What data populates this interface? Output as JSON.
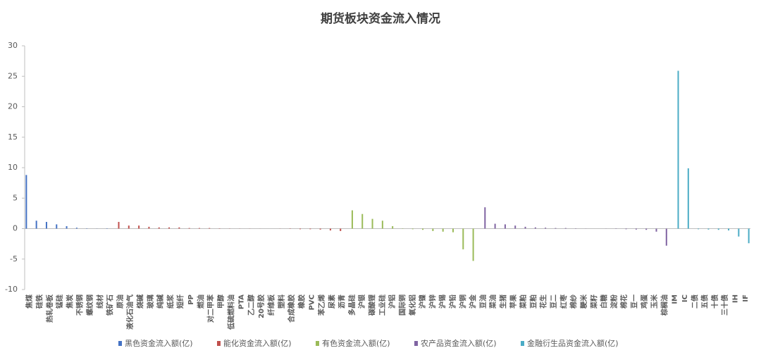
{
  "chart_data": {
    "type": "bar",
    "title": "期货板块资金流入情况",
    "categories": [
      "焦煤",
      "硅铁",
      "热轧卷板",
      "锰硅",
      "焦炭",
      "不锈钢",
      "螺纹钢",
      "线材",
      "铁矿石",
      "原油",
      "液化石油气",
      "烧碱",
      "玻璃",
      "纯碱",
      "纸浆",
      "短纤",
      "PP",
      "燃油",
      "对二甲苯",
      "甲醇",
      "低硫燃料油",
      "PTA",
      "乙二醇",
      "20号胶",
      "纤维板",
      "塑料",
      "合成橡胶",
      "橡胶",
      "PVC",
      "苯乙烯",
      "尿素",
      "沥青",
      "多晶硅",
      "沪银",
      "碳酸锂",
      "工业硅",
      "沪铝",
      "国际铜",
      "氧化铝",
      "沪镍",
      "沪锌",
      "沪锡",
      "沪铅",
      "沪铜",
      "沪金",
      "豆油",
      "菜油",
      "生猪",
      "苹果",
      "菜粕",
      "豆粕",
      "花生",
      "豆二",
      "红枣",
      "棉纱",
      "粳米",
      "菜籽",
      "白糖",
      "淀粉",
      "棉花",
      "豆一",
      "鸡蛋",
      "玉米",
      "棕榈油",
      "IM",
      "IC",
      "二债",
      "五债",
      "十债",
      "三十债",
      "IH",
      "IF"
    ],
    "series": [
      {
        "name": "黑色资金流入额(亿)",
        "color": "#4472c4",
        "values": [
          8.8,
          1.3,
          1.1,
          0.7,
          0.4,
          0.15,
          0.05,
          0.02,
          -0.05,
          null,
          null,
          null,
          null,
          null,
          null,
          null,
          null,
          null,
          null,
          null,
          null,
          null,
          null,
          null,
          null,
          null,
          null,
          null,
          null,
          null,
          null,
          null,
          null,
          null,
          null,
          null,
          null,
          null,
          null,
          null,
          null,
          null,
          null,
          null,
          null,
          null,
          null,
          null,
          null,
          null,
          null,
          null,
          null,
          null,
          null,
          null,
          null,
          null,
          null,
          null,
          null,
          null,
          null,
          null,
          null,
          null,
          null,
          null,
          null,
          null,
          null,
          null
        ]
      },
      {
        "name": "能化资金流入额(亿)",
        "color": "#c0504d",
        "values": [
          null,
          null,
          null,
          null,
          null,
          null,
          null,
          null,
          null,
          1.1,
          0.5,
          0.5,
          0.3,
          0.2,
          0.2,
          0.2,
          0.1,
          0.1,
          0.1,
          0.05,
          0.03,
          0.02,
          0.02,
          0.01,
          0,
          -0.02,
          -0.05,
          -0.1,
          -0.1,
          -0.15,
          -0.3,
          -0.4,
          null,
          null,
          null,
          null,
          null,
          null,
          null,
          null,
          null,
          null,
          null,
          null,
          null,
          null,
          null,
          null,
          null,
          null,
          null,
          null,
          null,
          null,
          null,
          null,
          null,
          null,
          null,
          null,
          null,
          null,
          null,
          null,
          null,
          null,
          null,
          null,
          null,
          null,
          null,
          null
        ]
      },
      {
        "name": "有色资金流入额(亿)",
        "color": "#9bbb59",
        "values": [
          null,
          null,
          null,
          null,
          null,
          null,
          null,
          null,
          null,
          null,
          null,
          null,
          null,
          null,
          null,
          null,
          null,
          null,
          null,
          null,
          null,
          null,
          null,
          null,
          null,
          null,
          null,
          null,
          null,
          null,
          null,
          null,
          3.0,
          2.4,
          1.6,
          1.3,
          0.4,
          0.05,
          -0.1,
          -0.2,
          -0.4,
          -0.5,
          -0.6,
          -3.4,
          -5.3,
          null,
          null,
          null,
          null,
          null,
          null,
          null,
          null,
          null,
          null,
          null,
          null,
          null,
          null,
          null,
          null,
          null,
          null,
          null,
          null,
          null,
          null,
          null,
          null,
          null,
          null,
          null
        ]
      },
      {
        "name": "农产品资金流入额(亿)",
        "color": "#8064a2",
        "values": [
          null,
          null,
          null,
          null,
          null,
          null,
          null,
          null,
          null,
          null,
          null,
          null,
          null,
          null,
          null,
          null,
          null,
          null,
          null,
          null,
          null,
          null,
          null,
          null,
          null,
          null,
          null,
          null,
          null,
          null,
          null,
          null,
          null,
          null,
          null,
          null,
          null,
          null,
          null,
          null,
          null,
          null,
          null,
          null,
          null,
          3.5,
          0.8,
          0.7,
          0.5,
          0.3,
          0.2,
          0.15,
          0.1,
          0.1,
          0.05,
          0.02,
          0,
          -0.02,
          -0.05,
          -0.1,
          -0.15,
          -0.2,
          -0.5,
          -2.8,
          null,
          null,
          null,
          null,
          null,
          null,
          null,
          null
        ]
      },
      {
        "name": "金融衍生品资金流入额(亿)",
        "color": "#4bacc6",
        "values": [
          null,
          null,
          null,
          null,
          null,
          null,
          null,
          null,
          null,
          null,
          null,
          null,
          null,
          null,
          null,
          null,
          null,
          null,
          null,
          null,
          null,
          null,
          null,
          null,
          null,
          null,
          null,
          null,
          null,
          null,
          null,
          null,
          null,
          null,
          null,
          null,
          null,
          null,
          null,
          null,
          null,
          null,
          null,
          null,
          null,
          null,
          null,
          null,
          null,
          null,
          null,
          null,
          null,
          null,
          null,
          null,
          null,
          null,
          null,
          null,
          null,
          null,
          null,
          null,
          25.9,
          9.9,
          -0.1,
          -0.15,
          -0.2,
          -0.3,
          -1.3,
          -2.4
        ]
      }
    ],
    "ylim": [
      -10,
      30
    ],
    "yticks": [
      -10,
      -5,
      0,
      5,
      10,
      15,
      20,
      25,
      30
    ],
    "grid": false,
    "legend": "bottom"
  }
}
